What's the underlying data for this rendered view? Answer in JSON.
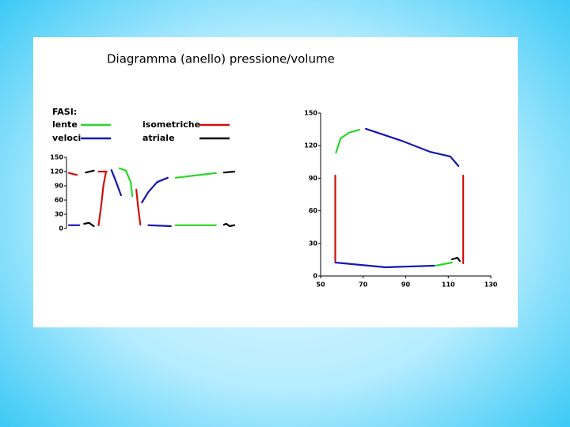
{
  "title": "Diagramma (anello) pressione/volume",
  "legend": {
    "heading": "FASI:",
    "items": [
      {
        "label": "lente",
        "color": "#2ad62a"
      },
      {
        "label": "veloci",
        "color": "#1616b4"
      },
      {
        "label": "isometriche",
        "color": "#d01010"
      },
      {
        "label": "atriale",
        "color": "#000000"
      }
    ]
  },
  "chart_data": [
    {
      "type": "line",
      "ylim": [
        0,
        150
      ],
      "yticks": [
        0,
        30,
        60,
        90,
        120,
        150
      ],
      "series": [
        {
          "color": "#d01010",
          "x": [
            1,
            11
          ],
          "values": [
            117,
            113
          ]
        },
        {
          "color": "#000000",
          "x": [
            22,
            32
          ],
          "values": [
            118,
            122
          ]
        },
        {
          "color": "#d01010",
          "x": [
            38,
            48
          ],
          "values": [
            120,
            120
          ]
        },
        {
          "color": "#1616b4",
          "x": [
            54,
            59,
            66
          ],
          "values": [
            123,
            102,
            70
          ]
        },
        {
          "color": "#2ad62a",
          "x": [
            64,
            72,
            78,
            80
          ],
          "values": [
            127,
            122,
            98,
            68
          ]
        },
        {
          "color": "#d01010",
          "x": [
            85,
            87,
            90
          ],
          "values": [
            82,
            48,
            8
          ]
        },
        {
          "color": "#1616b4",
          "x": [
            1,
            14
          ],
          "values": [
            7,
            7
          ]
        },
        {
          "color": "#000000",
          "x": [
            20,
            26,
            32
          ],
          "values": [
            10,
            12,
            5
          ]
        },
        {
          "color": "#d01010",
          "x": [
            38,
            41,
            44,
            47
          ],
          "values": [
            7,
            45,
            90,
            118
          ]
        },
        {
          "color": "#1616b4",
          "x": [
            92,
            100,
            111,
            124
          ],
          "values": [
            55,
            77,
            98,
            107
          ]
        },
        {
          "color": "#1616b4",
          "x": [
            100,
            128
          ],
          "values": [
            7,
            5
          ]
        },
        {
          "color": "#2ad62a",
          "x": [
            134,
            184
          ],
          "values": [
            107,
            117
          ]
        },
        {
          "color": "#000000",
          "x": [
            194,
            207
          ],
          "values": [
            118,
            120
          ]
        },
        {
          "color": "#2ad62a",
          "x": [
            134,
            184
          ],
          "values": [
            7,
            7
          ]
        },
        {
          "color": "#000000",
          "x": [
            194,
            197,
            201,
            207
          ],
          "values": [
            8,
            10,
            5,
            7
          ]
        }
      ]
    },
    {
      "type": "line",
      "xlim": [
        50,
        130
      ],
      "ylim": [
        0,
        150
      ],
      "xticks": [
        50,
        70,
        90,
        110,
        130
      ],
      "yticks": [
        0,
        30,
        60,
        90,
        120,
        150
      ],
      "series": [
        {
          "color": "#2ad62a",
          "x": [
            57.2,
            59.4,
            63.2,
            68.2
          ],
          "values": [
            113.6,
            126.7,
            131.8,
            134.7
          ]
        },
        {
          "color": "#1616b4",
          "x": [
            71.3,
            88,
            101.3,
            111,
            114.8
          ],
          "values": [
            135.5,
            124.6,
            114.4,
            110,
            101.2
          ]
        },
        {
          "color": "#d01010",
          "x": [
            117,
            117
          ],
          "values": [
            92.5,
            11.7
          ]
        },
        {
          "color": "#000000",
          "x": [
            111.7,
            114.3,
            115.4
          ],
          "values": [
            15.3,
            16.8,
            13.8
          ]
        },
        {
          "color": "#2ad62a",
          "x": [
            104,
            111.7
          ],
          "values": [
            9.5,
            12.4
          ]
        },
        {
          "color": "#1616b4",
          "x": [
            56.9,
            80.5,
            103.3
          ],
          "values": [
            12.4,
            8,
            9.5
          ]
        },
        {
          "color": "#d01010",
          "x": [
            56.9,
            56.9
          ],
          "values": [
            92.5,
            13.8
          ]
        }
      ]
    }
  ]
}
